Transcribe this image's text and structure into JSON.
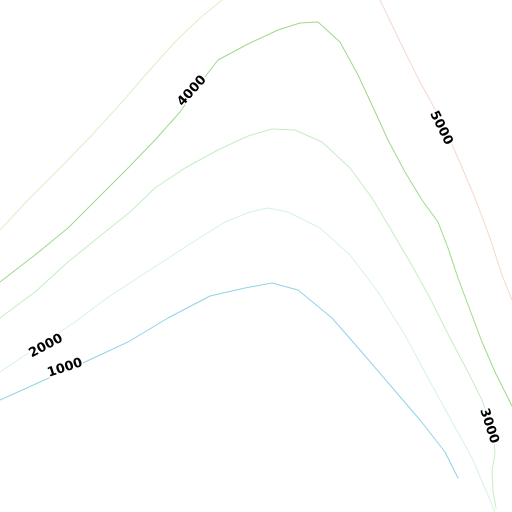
{
  "contour_map": {
    "labels": {
      "l1000": "1000",
      "l2000": "2000",
      "l3000": "3000",
      "l4000": "4000",
      "l5000": "5000"
    },
    "colors": {
      "c1000": "#8fd3ea",
      "c2000": "#d6f2e6",
      "c3000": "#c6edc3",
      "c4000": "#9ed98c",
      "c4500": "#dbf0c8",
      "c5000": "#f5d8cc"
    }
  }
}
